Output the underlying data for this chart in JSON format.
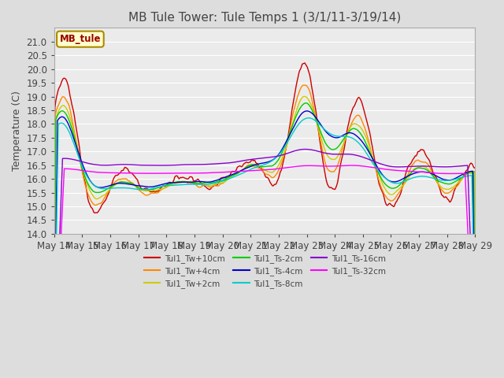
{
  "title": "MB Tule Tower: Tule Temps 1 (3/1/11-3/19/14)",
  "ylabel": "Temperature (C)",
  "ylim": [
    14.0,
    21.5
  ],
  "yticks": [
    14.0,
    14.5,
    15.0,
    15.5,
    16.0,
    16.5,
    17.0,
    17.5,
    18.0,
    18.5,
    19.0,
    19.5,
    20.0,
    20.5,
    21.0
  ],
  "legend_label": "MB_tule",
  "legend_box_color": "#ffffcc",
  "legend_box_edge": "#aa8800",
  "legend_text_color": "#990000",
  "series_colors": [
    "#cc0000",
    "#ff8800",
    "#cccc00",
    "#00cc00",
    "#0000cc",
    "#00cccc",
    "#8800cc",
    "#ff00ff"
  ],
  "series_labels": [
    "Tul1_Tw+10cm",
    "Tul1_Tw+4cm",
    "Tul1_Tw+2cm",
    "Tul1_Ts-2cm",
    "Tul1_Ts-4cm",
    "Tul1_Ts-8cm",
    "Tul1_Ts-16cm",
    "Tul1_Ts-32cm"
  ],
  "bg_color": "#dddddd",
  "plot_bg_color": "#ebebeb",
  "grid_color": "#ffffff",
  "title_color": "#444444",
  "tick_label_color": "#444444",
  "tick_fontsize": 8.5,
  "ylabel_fontsize": 9,
  "title_fontsize": 11
}
